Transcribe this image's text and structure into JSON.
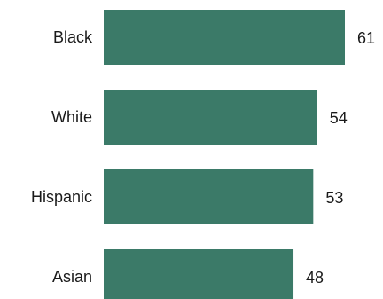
{
  "chart_data": {
    "type": "bar",
    "orientation": "horizontal",
    "categories": [
      "Black",
      "White",
      "Hispanic",
      "Asian"
    ],
    "values": [
      61,
      54,
      53,
      48
    ],
    "data_labels": [
      "61",
      "54",
      "53",
      "48"
    ],
    "title": "",
    "xlabel": "",
    "ylabel": "",
    "xlim": [
      0,
      61
    ],
    "grid": false,
    "legend": "none",
    "bar_color": "#3b7a68"
  }
}
